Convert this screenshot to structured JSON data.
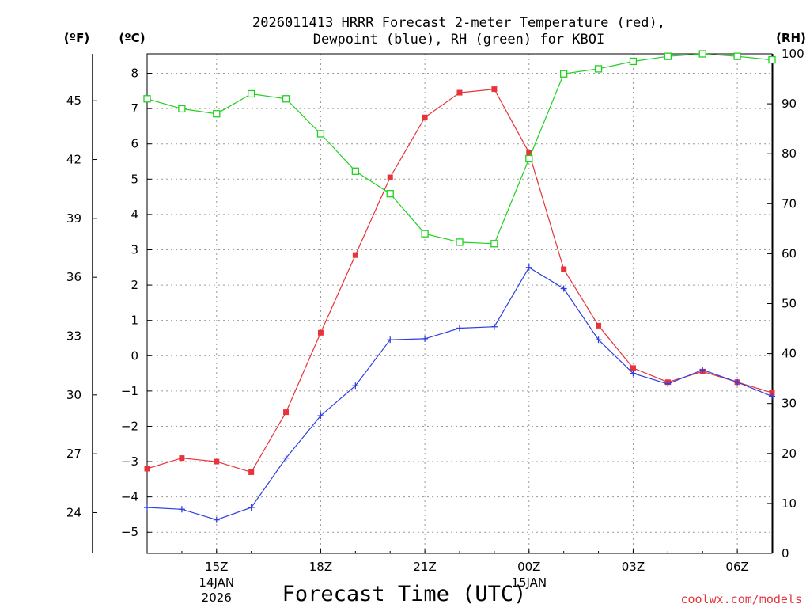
{
  "chart_data": {
    "type": "line",
    "title_line1": "2026011413 HRRR Forecast 2-meter Temperature (red),",
    "title_line2": "Dewpoint (blue), RH (green) for KBOI",
    "xlabel": "Forecast Time (UTC)",
    "credit": "coolwx.com/models",
    "units": {
      "fahrenheit": "(ºF)",
      "celsius": "(ºC)",
      "rh": "(RH)"
    },
    "x_range": [
      13,
      31
    ],
    "celsius_range": [
      -5.6,
      8.55
    ],
    "rh_range": [
      0,
      100
    ],
    "x_ticks": [
      {
        "x": 15,
        "label": "15Z",
        "sub1": "14JAN",
        "sub2": "2026"
      },
      {
        "x": 18,
        "label": "18Z"
      },
      {
        "x": 21,
        "label": "21Z"
      },
      {
        "x": 24,
        "label": "00Z",
        "sub1": "15JAN"
      },
      {
        "x": 27,
        "label": "03Z"
      },
      {
        "x": 30,
        "label": "06Z"
      }
    ],
    "celsius_ticks": [
      -5,
      -4,
      -3,
      -2,
      -1,
      0,
      1,
      2,
      3,
      4,
      5,
      6,
      7,
      8
    ],
    "fahrenheit_ticks": [
      24,
      27,
      30,
      33,
      36,
      39,
      42,
      45
    ],
    "rh_ticks": [
      0,
      10,
      20,
      30,
      40,
      50,
      60,
      70,
      80,
      90,
      100
    ],
    "x": [
      13,
      14,
      15,
      16,
      17,
      18,
      19,
      20,
      21,
      22,
      23,
      24,
      25,
      26,
      27,
      28,
      29,
      30,
      31
    ],
    "series": [
      {
        "name": "Temperature",
        "axis": "celsius",
        "color": "#e8333a",
        "marker": "filled-square",
        "values": [
          -3.2,
          -2.9,
          -3.0,
          -3.3,
          -1.6,
          0.65,
          2.85,
          5.05,
          6.75,
          7.45,
          7.55,
          5.75,
          2.45,
          0.85,
          -0.35,
          -0.75,
          -0.45,
          -0.75,
          -1.05
        ]
      },
      {
        "name": "Dewpoint",
        "axis": "celsius",
        "color": "#2f3fe0",
        "marker": "plus",
        "values": [
          -4.3,
          -4.35,
          -4.65,
          -4.3,
          -2.9,
          -1.7,
          -0.85,
          0.45,
          0.48,
          0.78,
          0.82,
          2.5,
          1.9,
          0.45,
          -0.5,
          -0.8,
          -0.4,
          -0.75,
          -1.15
        ]
      },
      {
        "name": "RH",
        "axis": "rh",
        "color": "#20d020",
        "marker": "open-square",
        "values": [
          91,
          89,
          88,
          92,
          91,
          84,
          76.5,
          72,
          64,
          62.3,
          62,
          79,
          96,
          97,
          98.5,
          99.5,
          100,
          99.5,
          98.8
        ]
      }
    ]
  }
}
